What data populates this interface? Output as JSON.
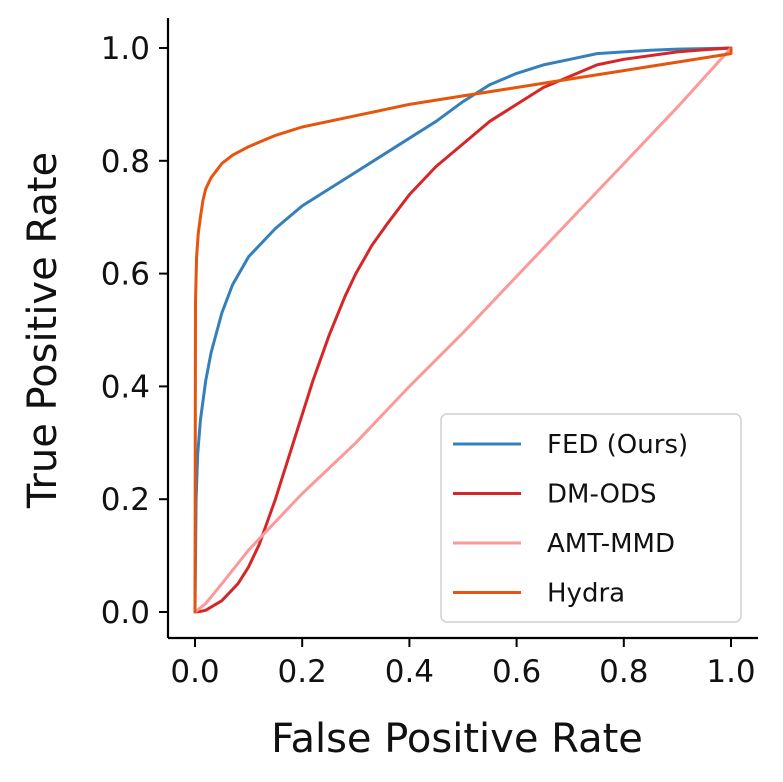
{
  "chart_data": {
    "type": "line",
    "title": "",
    "xlabel": "False Positive Rate",
    "ylabel": "True Positive Rate",
    "xlim": [
      0.0,
      1.0
    ],
    "ylim": [
      0.0,
      1.0
    ],
    "xticks": [
      "0.0",
      "0.2",
      "0.4",
      "0.6",
      "0.8",
      "1.0"
    ],
    "yticks": [
      "0.0",
      "0.2",
      "0.4",
      "0.6",
      "0.8",
      "1.0"
    ],
    "grid": false,
    "legend_position": "lower-right",
    "series": [
      {
        "name": "FED (Ours)",
        "color": "#3580bb",
        "points": [
          [
            0,
            0
          ],
          [
            0.002,
            0.2
          ],
          [
            0.005,
            0.28
          ],
          [
            0.01,
            0.34
          ],
          [
            0.02,
            0.41
          ],
          [
            0.03,
            0.46
          ],
          [
            0.05,
            0.53
          ],
          [
            0.07,
            0.58
          ],
          [
            0.1,
            0.63
          ],
          [
            0.15,
            0.68
          ],
          [
            0.2,
            0.72
          ],
          [
            0.25,
            0.75
          ],
          [
            0.3,
            0.78
          ],
          [
            0.35,
            0.81
          ],
          [
            0.4,
            0.84
          ],
          [
            0.45,
            0.87
          ],
          [
            0.5,
            0.905
          ],
          [
            0.55,
            0.935
          ],
          [
            0.6,
            0.955
          ],
          [
            0.65,
            0.97
          ],
          [
            0.7,
            0.98
          ],
          [
            0.75,
            0.99
          ],
          [
            0.8,
            0.993
          ],
          [
            0.85,
            0.996
          ],
          [
            0.9,
            0.998
          ],
          [
            0.95,
            0.999
          ],
          [
            1.0,
            1.0
          ]
        ]
      },
      {
        "name": "DM-ODS",
        "color": "#d62728",
        "points": [
          [
            0,
            0
          ],
          [
            0.01,
            0.001
          ],
          [
            0.02,
            0.003
          ],
          [
            0.05,
            0.02
          ],
          [
            0.08,
            0.05
          ],
          [
            0.1,
            0.08
          ],
          [
            0.12,
            0.12
          ],
          [
            0.15,
            0.2
          ],
          [
            0.18,
            0.29
          ],
          [
            0.2,
            0.35
          ],
          [
            0.22,
            0.41
          ],
          [
            0.25,
            0.49
          ],
          [
            0.28,
            0.56
          ],
          [
            0.3,
            0.6
          ],
          [
            0.33,
            0.65
          ],
          [
            0.36,
            0.69
          ],
          [
            0.4,
            0.74
          ],
          [
            0.45,
            0.79
          ],
          [
            0.5,
            0.83
          ],
          [
            0.55,
            0.87
          ],
          [
            0.6,
            0.9
          ],
          [
            0.65,
            0.93
          ],
          [
            0.7,
            0.95
          ],
          [
            0.75,
            0.97
          ],
          [
            0.8,
            0.98
          ],
          [
            0.9,
            0.993
          ],
          [
            0.95,
            0.997
          ],
          [
            1.0,
            1.0
          ]
        ]
      },
      {
        "name": "AMT-MMD",
        "color": "#fb9a99",
        "points": [
          [
            0,
            0
          ],
          [
            0.02,
            0.015
          ],
          [
            0.05,
            0.05
          ],
          [
            0.1,
            0.11
          ],
          [
            0.2,
            0.21
          ],
          [
            0.3,
            0.3
          ],
          [
            0.4,
            0.4
          ],
          [
            0.5,
            0.495
          ],
          [
            0.6,
            0.595
          ],
          [
            0.7,
            0.695
          ],
          [
            0.8,
            0.795
          ],
          [
            0.9,
            0.895
          ],
          [
            1.0,
            1.0
          ]
        ]
      },
      {
        "name": "Hydra",
        "color": "#e6550d",
        "points": [
          [
            0,
            0
          ],
          [
            0.001,
            0.55
          ],
          [
            0.003,
            0.63
          ],
          [
            0.006,
            0.67
          ],
          [
            0.01,
            0.7
          ],
          [
            0.015,
            0.73
          ],
          [
            0.02,
            0.75
          ],
          [
            0.03,
            0.77
          ],
          [
            0.05,
            0.795
          ],
          [
            0.07,
            0.81
          ],
          [
            0.1,
            0.825
          ],
          [
            0.15,
            0.845
          ],
          [
            0.2,
            0.86
          ],
          [
            0.3,
            0.88
          ],
          [
            0.4,
            0.9
          ],
          [
            0.5,
            0.915
          ],
          [
            0.6,
            0.93
          ],
          [
            0.7,
            0.945
          ],
          [
            0.8,
            0.96
          ],
          [
            0.9,
            0.975
          ],
          [
            1.0,
            0.99
          ],
          [
            1.0,
            1.0
          ]
        ]
      }
    ]
  }
}
